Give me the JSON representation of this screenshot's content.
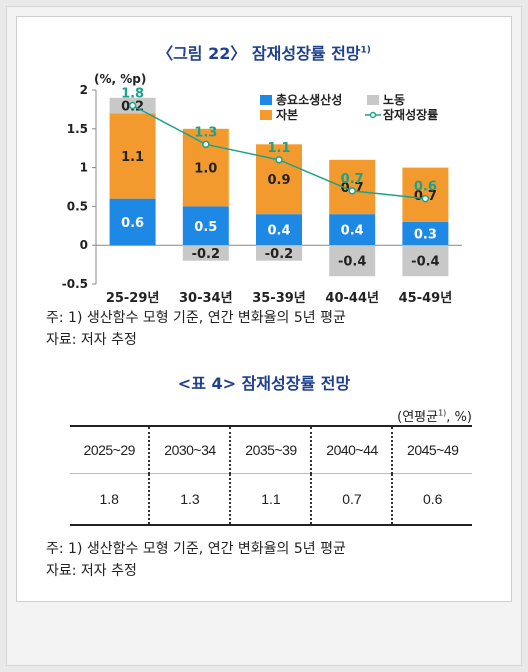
{
  "figure_title": "〈그림 22〉 잠재성장률 전망",
  "figure_title_sup": "1)",
  "chart_data": {
    "type": "bar",
    "stacked": true,
    "unit_label": "(%, %p)",
    "categories": [
      "25-29년",
      "30-34년",
      "35-39년",
      "40-44년",
      "45-49년"
    ],
    "ylim": [
      -0.5,
      2
    ],
    "yticks": [
      "-0.5",
      "0",
      "0.5",
      "1",
      "1.5",
      "2"
    ],
    "legend_position": "top-right",
    "series": [
      {
        "name": "총요소생산성",
        "color": "#1e88e5",
        "values": [
          0.6,
          0.5,
          0.4,
          0.4,
          0.3
        ],
        "labels": [
          "0.6",
          "0.5",
          "0.4",
          "0.4",
          "0.3"
        ]
      },
      {
        "name": "자본",
        "color": "#f39a2e",
        "values": [
          1.1,
          1.0,
          0.9,
          0.7,
          0.7
        ],
        "labels": [
          "1.1",
          "1.0",
          "0.9",
          "0.7",
          "0.7"
        ]
      },
      {
        "name": "노동",
        "color": "#c8c8c8",
        "values": [
          0.2,
          -0.2,
          -0.2,
          -0.4,
          -0.4
        ],
        "labels": [
          "0.2",
          "-0.2",
          "-0.2",
          "-0.4",
          "-0.4"
        ]
      }
    ],
    "line": {
      "name": "잠재성장률",
      "color": "#1aa38a",
      "values": [
        1.8,
        1.3,
        1.1,
        0.7,
        0.6
      ],
      "labels": [
        "1.8",
        "1.3",
        "1.1",
        "0.7",
        "0.6"
      ]
    }
  },
  "chart_note": "주: 1) 생산함수 모형 기준, 연간 변화율의 5년 평균",
  "chart_source": "자료: 저자 추정",
  "table_title": "<표 4> 잠재성장률 전망",
  "table_unit": "(연평균",
  "table_unit_sup": "1)",
  "table_unit_tail": ", %)",
  "table": {
    "headers": [
      "2025~29",
      "2030~34",
      "2035~39",
      "2040~44",
      "2045~49"
    ],
    "values": [
      "1.8",
      "1.3",
      "1.1",
      "0.7",
      "0.6"
    ]
  },
  "table_note": "주: 1) 생산함수 모형 기준, 연간 변화율의 5년 평균",
  "table_source": "자료: 저자 추정"
}
